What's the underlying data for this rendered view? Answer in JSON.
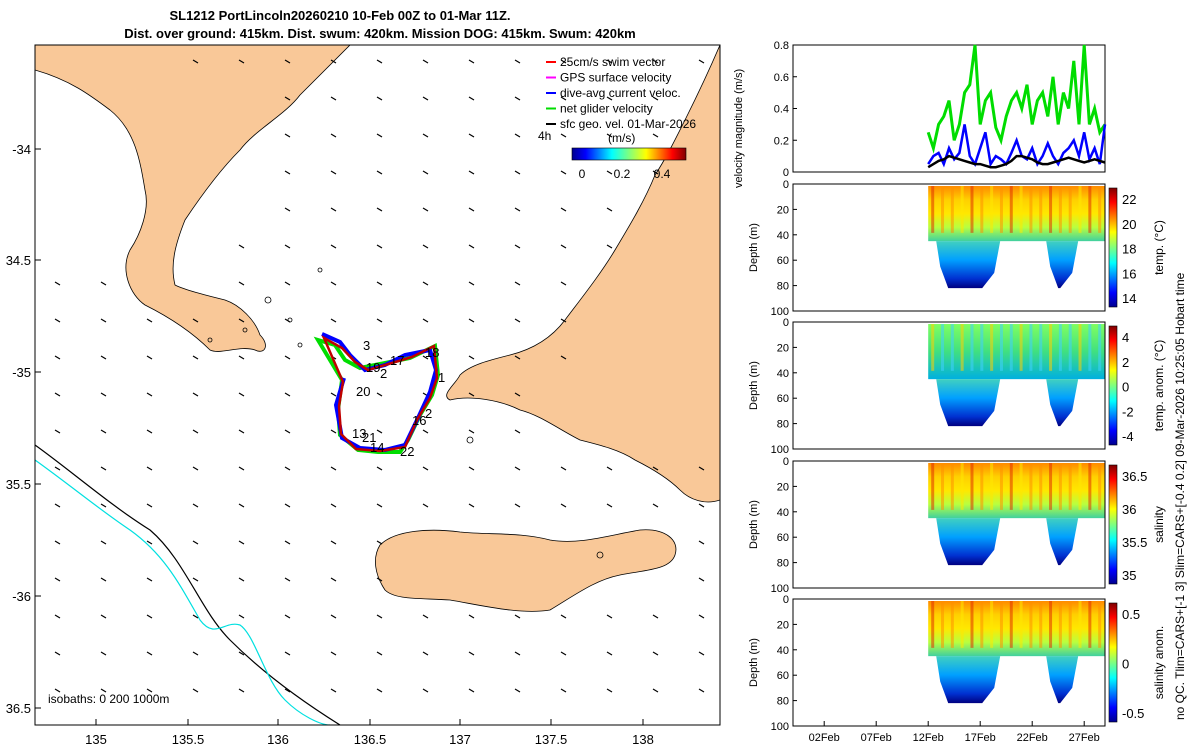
{
  "title_line1": "SL1212 PortLincoln20260210 10-Feb 00Z to 01-Mar 11Z.",
  "title_line2": "Dist. over ground: 415km. Dist. swum: 420km. Mission DOG: 415km. Swum: 420km",
  "map": {
    "lon_ticks": [
      "135",
      "135.5",
      "136",
      "136.5",
      "137",
      "137.5",
      "138"
    ],
    "lat_ticks": [
      "-34",
      "34.5",
      "-35",
      "35.5",
      "-36",
      "36.5"
    ],
    "legend": [
      {
        "label": "25cm/s swim vector",
        "color": "#ff0000"
      },
      {
        "label": "GPS surface velocity",
        "color": "#ff00ff"
      },
      {
        "label": "dive-avg current veloc.",
        "color": "#0000ff"
      },
      {
        "label": "net glider velocity",
        "color": "#00dd00"
      },
      {
        "label": "sfc geo. vel. 01-Mar-2026",
        "color": "#000000"
      }
    ],
    "legend_extra": "4h",
    "colorbar_title": "(m/s)",
    "colorbar_ticks": [
      "0",
      "0.2",
      "0.4"
    ],
    "isobaths_label": "isobaths: 0   200  1000m",
    "day_labels": [
      "3",
      "18",
      "17",
      "19",
      "2",
      "1",
      "20",
      "2",
      "16",
      "13",
      "21",
      "14",
      "22"
    ]
  },
  "panels": {
    "velocity": {
      "ylabel": "velocity magnitude (m/s)",
      "yticks": [
        "0",
        "0.2",
        "0.4",
        "0.6",
        "0.8"
      ]
    },
    "depth_ylabel": "Depth (m)",
    "depth_ticks": [
      "0",
      "20",
      "40",
      "60",
      "80",
      "100"
    ],
    "temp": {
      "label": "temp. (°C)",
      "ticks": [
        "22",
        "20",
        "18",
        "16",
        "14"
      ]
    },
    "temp_anom": {
      "label": "temp. anom. (°C)",
      "ticks": [
        "4",
        "2",
        "0",
        "-2",
        "-4"
      ]
    },
    "salinity": {
      "label": "salinity",
      "ticks": [
        "36.5",
        "36",
        "35.5",
        "35"
      ]
    },
    "sal_anom": {
      "label": "salinity anom.",
      "ticks": [
        "0.5",
        "0",
        "-0.5"
      ]
    },
    "x_ticks": [
      "02Feb",
      "07Feb",
      "12Feb",
      "17Feb",
      "22Feb",
      "27Feb"
    ]
  },
  "side_label": "no QC. Tlim=CARS+[-1 3] Slim=CARS+[-0.4 0.2] 09-Mar-2026 10:25:05 Hobart time",
  "chart_data": {
    "type": "line",
    "title": "velocity magnitude",
    "ylabel": "velocity magnitude (m/s)",
    "ylim": [
      0,
      0.8
    ],
    "x": [
      12,
      12.5,
      13,
      13.5,
      14,
      14.5,
      15,
      15.5,
      16,
      16.5,
      17,
      17.5,
      18,
      18.5,
      19,
      19.5,
      20,
      20.5,
      21,
      21.5,
      22,
      22.5,
      23,
      23.5,
      24,
      24.5,
      25,
      25.5,
      26,
      26.5,
      27,
      27.5,
      28,
      28.5,
      29
    ],
    "series": [
      {
        "name": "net glider velocity",
        "color": "#00dd00",
        "values": [
          0.25,
          0.15,
          0.3,
          0.35,
          0.45,
          0.2,
          0.3,
          0.5,
          0.55,
          0.8,
          0.3,
          0.45,
          0.5,
          0.28,
          0.2,
          0.35,
          0.45,
          0.5,
          0.4,
          0.55,
          0.3,
          0.45,
          0.5,
          0.35,
          0.6,
          0.3,
          0.5,
          0.4,
          0.7,
          0.3,
          0.8,
          0.3,
          0.4,
          0.25,
          0.3
        ]
      },
      {
        "name": "dive-avg current veloc.",
        "color": "#0000ff",
        "values": [
          0.05,
          0.1,
          0.12,
          0.05,
          0.15,
          0.08,
          0.12,
          0.3,
          0.1,
          0.05,
          0.15,
          0.25,
          0.05,
          0.1,
          0.08,
          0.05,
          0.12,
          0.2,
          0.1,
          0.08,
          0.15,
          0.05,
          0.1,
          0.18,
          0.1,
          0.05,
          0.12,
          0.15,
          0.2,
          0.1,
          0.25,
          0.08,
          0.15,
          0.05,
          0.3
        ]
      },
      {
        "name": "sfc geo. vel.",
        "color": "#000000",
        "values": [
          0.03,
          0.05,
          0.07,
          0.08,
          0.1,
          0.09,
          0.08,
          0.07,
          0.06,
          0.05,
          0.05,
          0.04,
          0.03,
          0.03,
          0.04,
          0.05,
          0.07,
          0.1,
          0.1,
          0.09,
          0.08,
          0.06,
          0.05,
          0.05,
          0.06,
          0.07,
          0.08,
          0.09,
          0.08,
          0.07,
          0.06,
          0.07,
          0.08,
          0.07,
          0.06
        ]
      }
    ]
  }
}
